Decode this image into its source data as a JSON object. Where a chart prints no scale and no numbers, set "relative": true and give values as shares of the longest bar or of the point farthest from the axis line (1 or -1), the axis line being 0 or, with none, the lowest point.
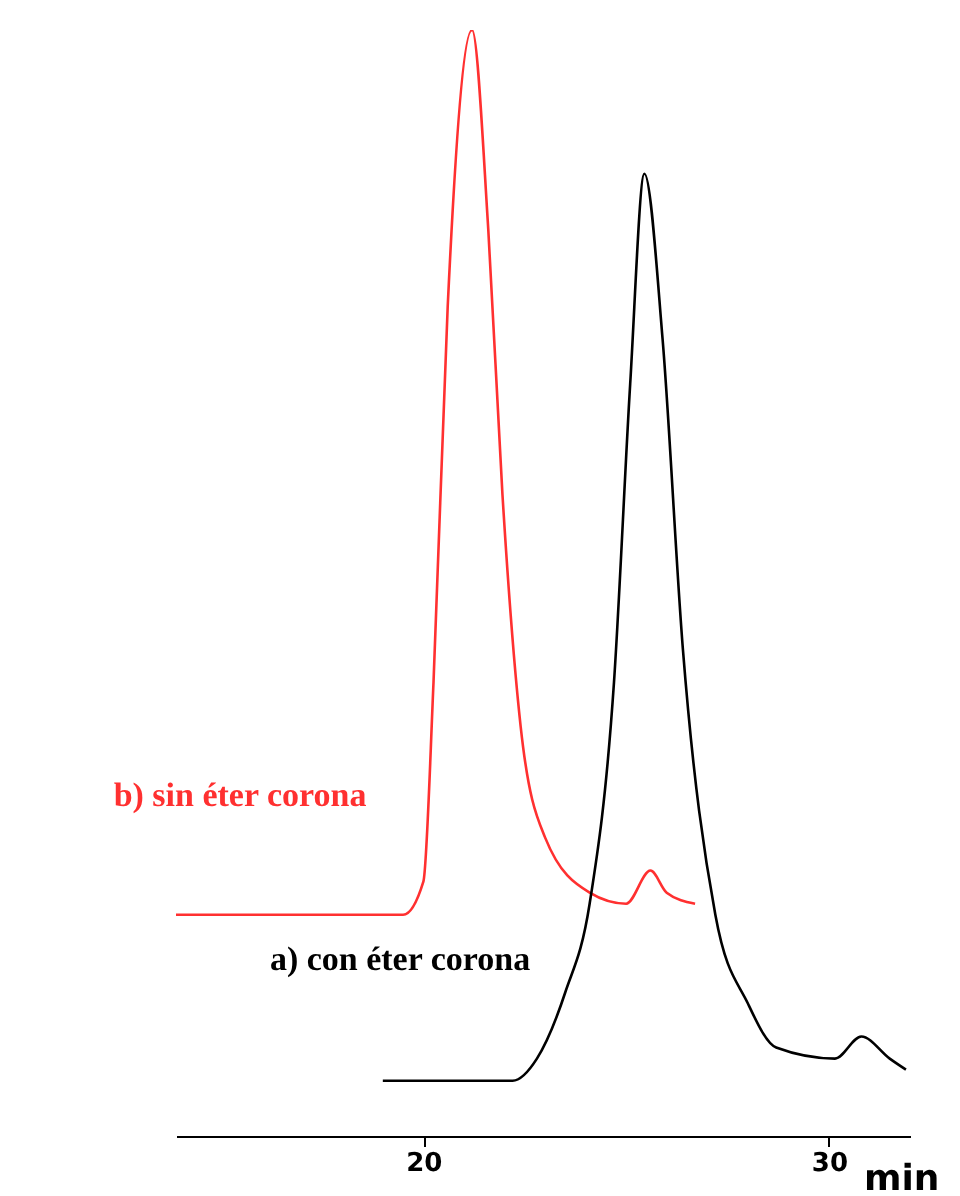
{
  "chart_data": {
    "type": "line",
    "relative": true,
    "xlabel": "min",
    "xlim": [
      13.9,
      32
    ],
    "xticks": [
      20,
      30
    ],
    "grid": false,
    "legend": false,
    "marker": "none",
    "line_style": "solid",
    "series": [
      {
        "name": "b) sin éter corona",
        "color": "#ff3030",
        "x": [
          13.9,
          19.5,
          20.0,
          20.25,
          20.6,
          21.2,
          21.6,
          21.95,
          22.4,
          23.0,
          24.1,
          25.0,
          25.6,
          26.0,
          26.7
        ],
        "values": [
          0.2,
          0.2,
          0.23,
          0.41,
          0.75,
          1,
          0.82,
          0.58,
          0.37,
          0.27,
          0.22,
          0.21,
          0.24,
          0.22,
          0.21
        ]
      },
      {
        "name": "a) con éter corona",
        "color": "#000000",
        "x": [
          19.0,
          22.2,
          22.8,
          23.5,
          24.1,
          24.7,
          25.1,
          25.45,
          25.9,
          26.4,
          27.2,
          28.0,
          28.7,
          30.15,
          30.8,
          31.5,
          31.9
        ],
        "values": [
          0.05,
          0.05,
          0.07,
          0.13,
          0.21,
          0.41,
          0.68,
          0.87,
          0.72,
          0.44,
          0.2,
          0.12,
          0.08,
          0.07,
          0.09,
          0.07,
          0.06
        ]
      }
    ]
  }
}
